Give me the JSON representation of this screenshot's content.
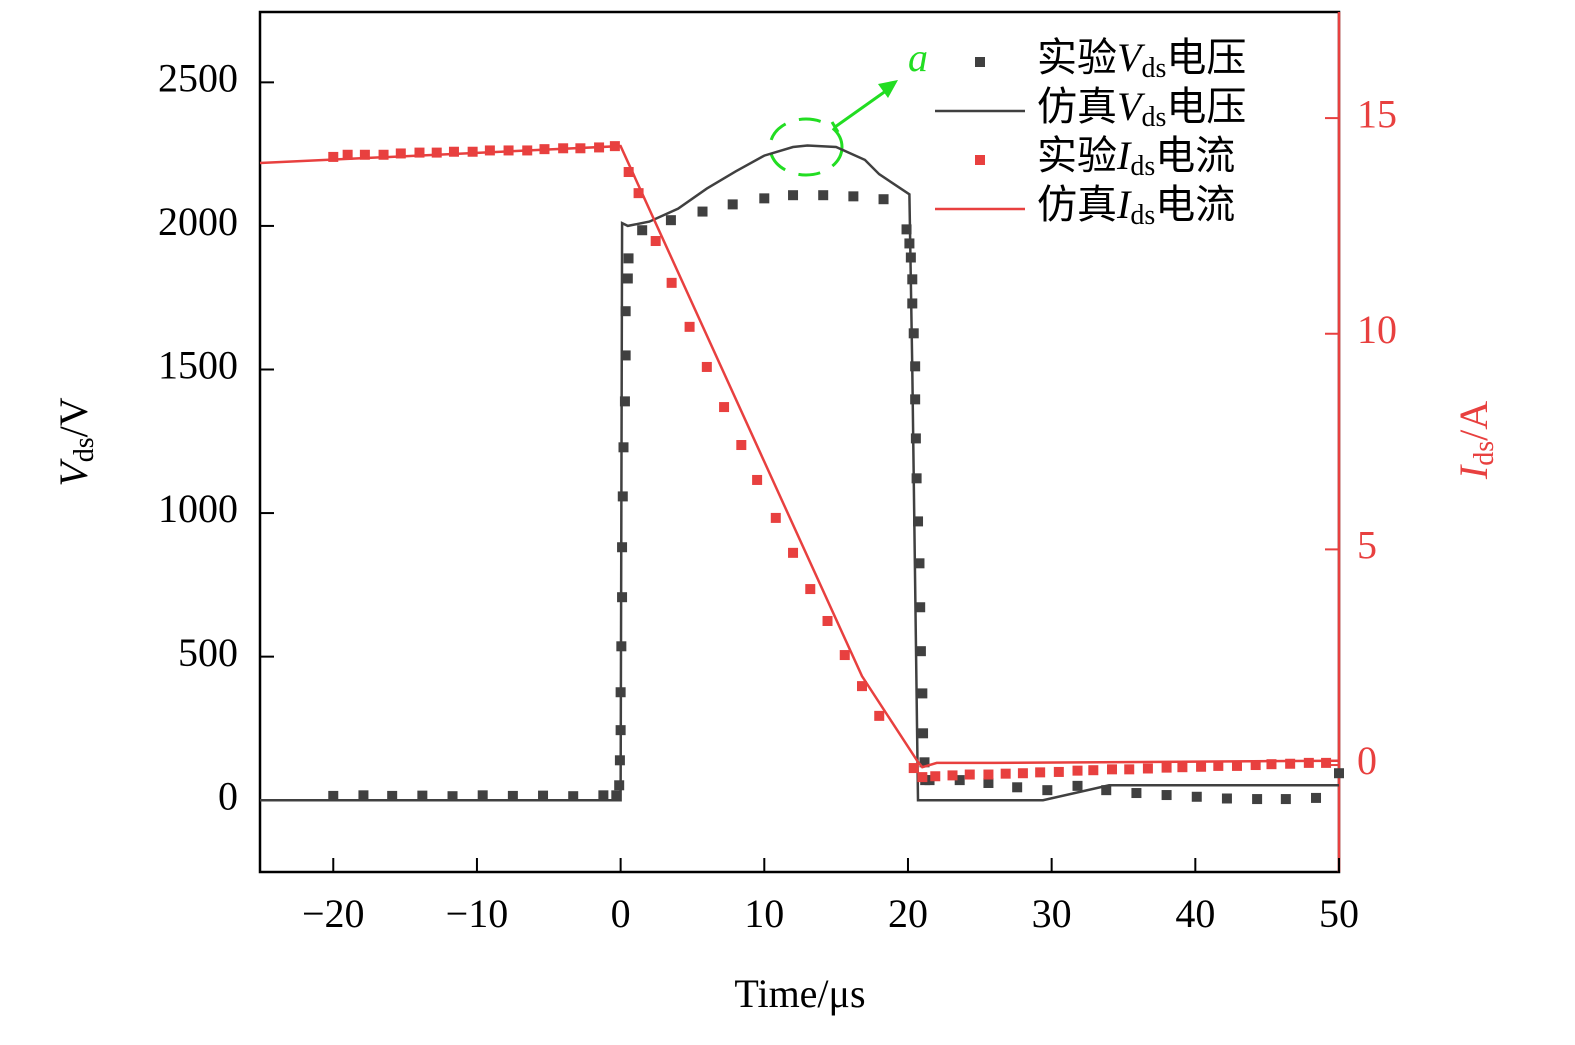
{
  "chart_data": {
    "type": "line",
    "xlabel": "Time/μs",
    "ylabel": "Vds/V",
    "y2label": "Ids/A",
    "annotation": "a",
    "xlim": [
      -25.1,
      50
    ],
    "ylim": [
      -250,
      2745
    ],
    "y2lim": [
      -2.48,
      17.46
    ],
    "xticks": [
      {
        "value": -20,
        "label": "−20"
      },
      {
        "value": -10,
        "label": "−10"
      },
      0,
      10,
      20,
      30,
      40,
      50
    ],
    "yticks": [
      0,
      500,
      1000,
      1500,
      2000,
      2500
    ],
    "y2ticks": [
      0,
      5,
      10,
      15
    ],
    "legend": "upper right",
    "series": [
      {
        "name": "实验Vds电压",
        "color": "#404040",
        "mode": "markers",
        "axis": "y",
        "x": [
          -20,
          -17.9,
          -15.9,
          -13.8,
          -11.7,
          -9.6,
          -7.5,
          -5.4,
          -3.3,
          -1.2,
          -0.3,
          -0.1,
          -0.05,
          0,
          0,
          0.05,
          0.1,
          0.1,
          0.15,
          0.2,
          0.3,
          0.35,
          0.35,
          0.5,
          0.55,
          1.5,
          3.5,
          5.7,
          7.8,
          10,
          12,
          14.1,
          16.2,
          18.3,
          19.9,
          20.1,
          20.2,
          20.3,
          20.3,
          20.4,
          20.5,
          20.5,
          20.55,
          20.6,
          20.7,
          20.8,
          20.85,
          20.9,
          21.0,
          21.05,
          21.15,
          21.2,
          21.5,
          23.6,
          25.6,
          27.6,
          29.7,
          31.8,
          33.8,
          35.9,
          38.0,
          40.1,
          42.2,
          44.3,
          46.3,
          48.4,
          50
        ],
        "values": [
          15,
          17,
          15,
          16,
          14,
          17,
          15,
          16,
          14,
          17,
          17,
          52,
          139,
          244,
          376,
          536,
          707,
          881,
          1058,
          1229,
          1389,
          1549,
          1703,
          1817,
          1887,
          1985,
          2020,
          2050,
          2075,
          2096,
          2107,
          2107,
          2103,
          2093,
          1988,
          1939,
          1890,
          1814,
          1730,
          1626,
          1511,
          1396,
          1260,
          1121,
          971,
          825,
          672,
          519,
          372,
          233,
          132,
          70,
          70,
          70,
          60,
          45,
          35,
          50,
          35,
          25,
          18,
          12,
          6,
          4,
          4,
          8,
          94
        ]
      },
      {
        "name": "仿真Vds电压",
        "color": "#404040",
        "mode": "lines",
        "axis": "y",
        "x": [
          -25.1,
          0,
          0.1,
          0.5,
          2,
          4,
          6,
          8,
          10,
          12,
          13,
          15,
          17,
          18,
          20.1,
          20.3,
          20.7,
          29.4,
          34,
          50
        ],
        "values": [
          0,
          0,
          2010,
          2000,
          2015,
          2060,
          2130,
          2190,
          2245,
          2275,
          2280,
          2275,
          2230,
          2180,
          2110,
          1500,
          0,
          0,
          52,
          52
        ]
      },
      {
        "name": "实验Ids电流",
        "color": "#e8403f",
        "mode": "markers",
        "axis": "y2",
        "x": [
          -20,
          -19,
          -17.8,
          -16.5,
          -15.3,
          -14,
          -12.8,
          -11.6,
          -10.3,
          -9.1,
          -7.8,
          -6.5,
          -5.3,
          -4,
          -2.8,
          -1.5,
          -0.4,
          0.56,
          1.25,
          2.44,
          3.55,
          4.8,
          6.0,
          7.2,
          8.4,
          9.5,
          10.8,
          12.0,
          13.2,
          14.4,
          15.6,
          16.8,
          18.0,
          20.4,
          21.0,
          21.9,
          23.1,
          24.3,
          25.6,
          26.8,
          28.0,
          29.2,
          30.5,
          31.8,
          32.9,
          34.2,
          35.4,
          36.7,
          38.0,
          39.1,
          40.4,
          41.6,
          42.9,
          44.2,
          45.3,
          46.6,
          47.9,
          49.1
        ],
        "values": [
          14.1,
          14.15,
          14.15,
          14.15,
          14.18,
          14.2,
          14.2,
          14.22,
          14.22,
          14.25,
          14.25,
          14.25,
          14.28,
          14.3,
          14.3,
          14.32,
          14.35,
          13.75,
          13.26,
          12.15,
          11.18,
          10.16,
          9.23,
          8.3,
          7.42,
          6.61,
          5.73,
          4.92,
          4.08,
          3.34,
          2.55,
          1.83,
          1.14,
          -0.07,
          -0.28,
          -0.26,
          -0.24,
          -0.22,
          -0.22,
          -0.2,
          -0.19,
          -0.17,
          -0.16,
          -0.13,
          -0.12,
          -0.1,
          -0.1,
          -0.08,
          -0.06,
          -0.05,
          -0.04,
          -0.02,
          -0.02,
          0,
          0.02,
          0.03,
          0.05,
          0.05
        ]
      },
      {
        "name": "仿真Ids电流",
        "color": "#e8403f",
        "mode": "lines",
        "axis": "y2",
        "x": [
          -25.1,
          0,
          16.8,
          20.7,
          21,
          22,
          26,
          50
        ],
        "values": [
          13.96,
          14.35,
          2.06,
          0.07,
          -0.05,
          0.05,
          0.05,
          0.1
        ]
      }
    ]
  }
}
